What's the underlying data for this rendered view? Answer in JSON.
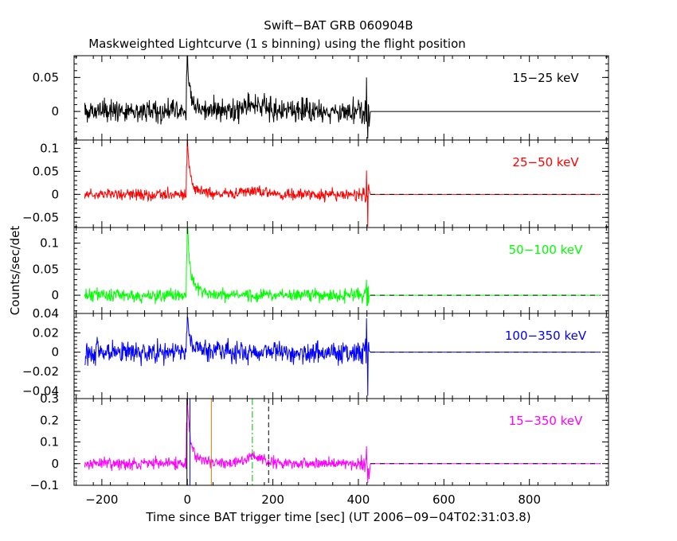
{
  "chart_data": {
    "type": "line",
    "title": "Swift−BAT GRB 060904B",
    "subtitle": "Maskweighted Lightcurve (1 s binning) using the flight position",
    "xlabel": "Time since BAT trigger time [sec] (UT 2006−09−04T02:31:03.8)",
    "ylabel": "Counts/sec/det",
    "xlim": [
      -265,
      985
    ],
    "x_ticks": [
      -200,
      0,
      200,
      400,
      600,
      800
    ],
    "x_tick_labels": [
      "−200",
      "0",
      "200",
      "400",
      "600",
      "800"
    ],
    "data_range": [
      -240,
      425
    ],
    "panels": [
      {
        "name": "15−25 keV",
        "color": "#000000",
        "ylim": [
          -0.042,
          0.082
        ],
        "ticks": [
          0,
          0.05
        ],
        "tick_labels": [
          "0",
          "0.05"
        ],
        "noise": 0.0085,
        "min_clip": -0.065,
        "peaks": [
          {
            "t": 0,
            "amp": 0.07
          },
          {
            "t": 155,
            "amp": 0.012,
            "width": 35
          }
        ],
        "end_spike": [
          0.05,
          -0.04
        ]
      },
      {
        "name": "25−50 keV",
        "color": "#ff0000",
        "ylim": [
          -0.072,
          0.118
        ],
        "ticks": [
          -0.05,
          0,
          0.05,
          0.1
        ],
        "tick_labels": [
          "−0.05",
          "0",
          "0.05",
          "0.1"
        ],
        "noise": 0.006,
        "min_clip": -0.07,
        "peaks": [
          {
            "t": 0,
            "amp": 0.1
          },
          {
            "t": 155,
            "amp": 0.009,
            "width": 35
          }
        ],
        "end_spike": [
          0.052,
          -0.07
        ]
      },
      {
        "name": "50−100 keV",
        "color": "#00ff00",
        "ylim": [
          -0.035,
          0.13
        ],
        "ticks": [
          0,
          0.05,
          0.1
        ],
        "tick_labels": [
          "0",
          "0.05",
          "0.1"
        ],
        "noise": 0.006,
        "min_clip": -0.035,
        "peaks": [
          {
            "t": 0,
            "amp": 0.12
          }
        ],
        "end_spike": [
          0.03,
          -0.02
        ]
      },
      {
        "name": "100−350 keV",
        "color": "#0000ff",
        "ylim": [
          -0.048,
          0.04
        ],
        "ticks": [
          -0.04,
          -0.02,
          0,
          0.02,
          0.04
        ],
        "tick_labels": [
          "−0.04",
          "−0.02",
          "0",
          "0.02",
          "0.04"
        ],
        "noise": 0.0055,
        "min_clip": -0.048,
        "peaks": [
          {
            "t": 0,
            "amp": 0.03
          }
        ],
        "end_spike": [
          0.035,
          -0.045
        ]
      },
      {
        "name": "15−350 keV",
        "color": "#ff00ff",
        "ylim": [
          -0.1,
          0.3
        ],
        "ticks": [
          -0.1,
          0,
          0.1,
          0.2,
          0.3
        ],
        "tick_labels": [
          "−0.1",
          "0",
          "0.1",
          "0.2",
          "0.3"
        ],
        "noise": 0.013,
        "min_clip": -0.1,
        "peaks": [
          {
            "t": 0,
            "amp": 0.27
          },
          {
            "t": 155,
            "amp": 0.03,
            "width": 35
          }
        ],
        "end_spike": [
          0.08,
          -0.09
        ]
      }
    ],
    "markers": [
      {
        "t": -1,
        "color": "#000000",
        "dash": "none"
      },
      {
        "t": 6,
        "color": "#0000ff",
        "dash": "none"
      },
      {
        "t": 56,
        "color": "#c87800",
        "dash": "none"
      },
      {
        "t": 152,
        "color": "#00bb00",
        "dash": "8 3 2 3"
      },
      {
        "t": 190,
        "color": "#000000",
        "dash": "6 4"
      }
    ]
  }
}
